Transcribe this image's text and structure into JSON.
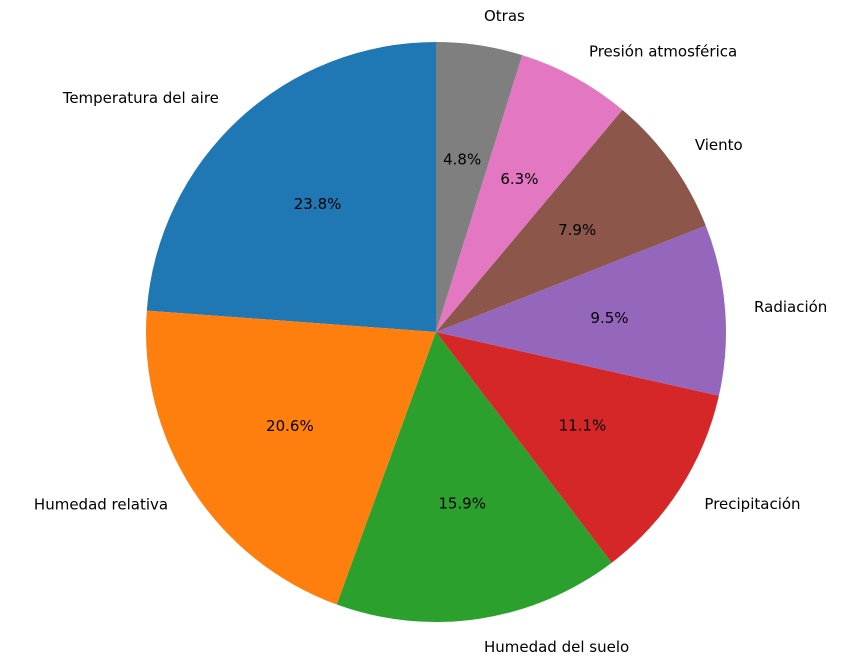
{
  "chart_data": {
    "type": "pie",
    "categories": [
      "Temperatura del aire",
      "Humedad relativa",
      "Humedad del suelo",
      "Precipitación",
      "Radiación",
      "Viento",
      "Presión atmosférica",
      "Otras"
    ],
    "values": [
      23.8,
      20.6,
      15.9,
      11.1,
      9.5,
      7.9,
      6.3,
      4.8
    ],
    "value_labels": [
      "23.8%",
      "20.6%",
      "15.9%",
      "11.1%",
      "9.5%",
      "7.9%",
      "6.3%",
      "4.8%"
    ],
    "colors": [
      "#1f77b4",
      "#ff7f0e",
      "#2ca02c",
      "#d62728",
      "#9467bd",
      "#8c564b",
      "#e377c2",
      "#7f7f7f"
    ],
    "start_angle": 90,
    "counterclockwise": true
  }
}
